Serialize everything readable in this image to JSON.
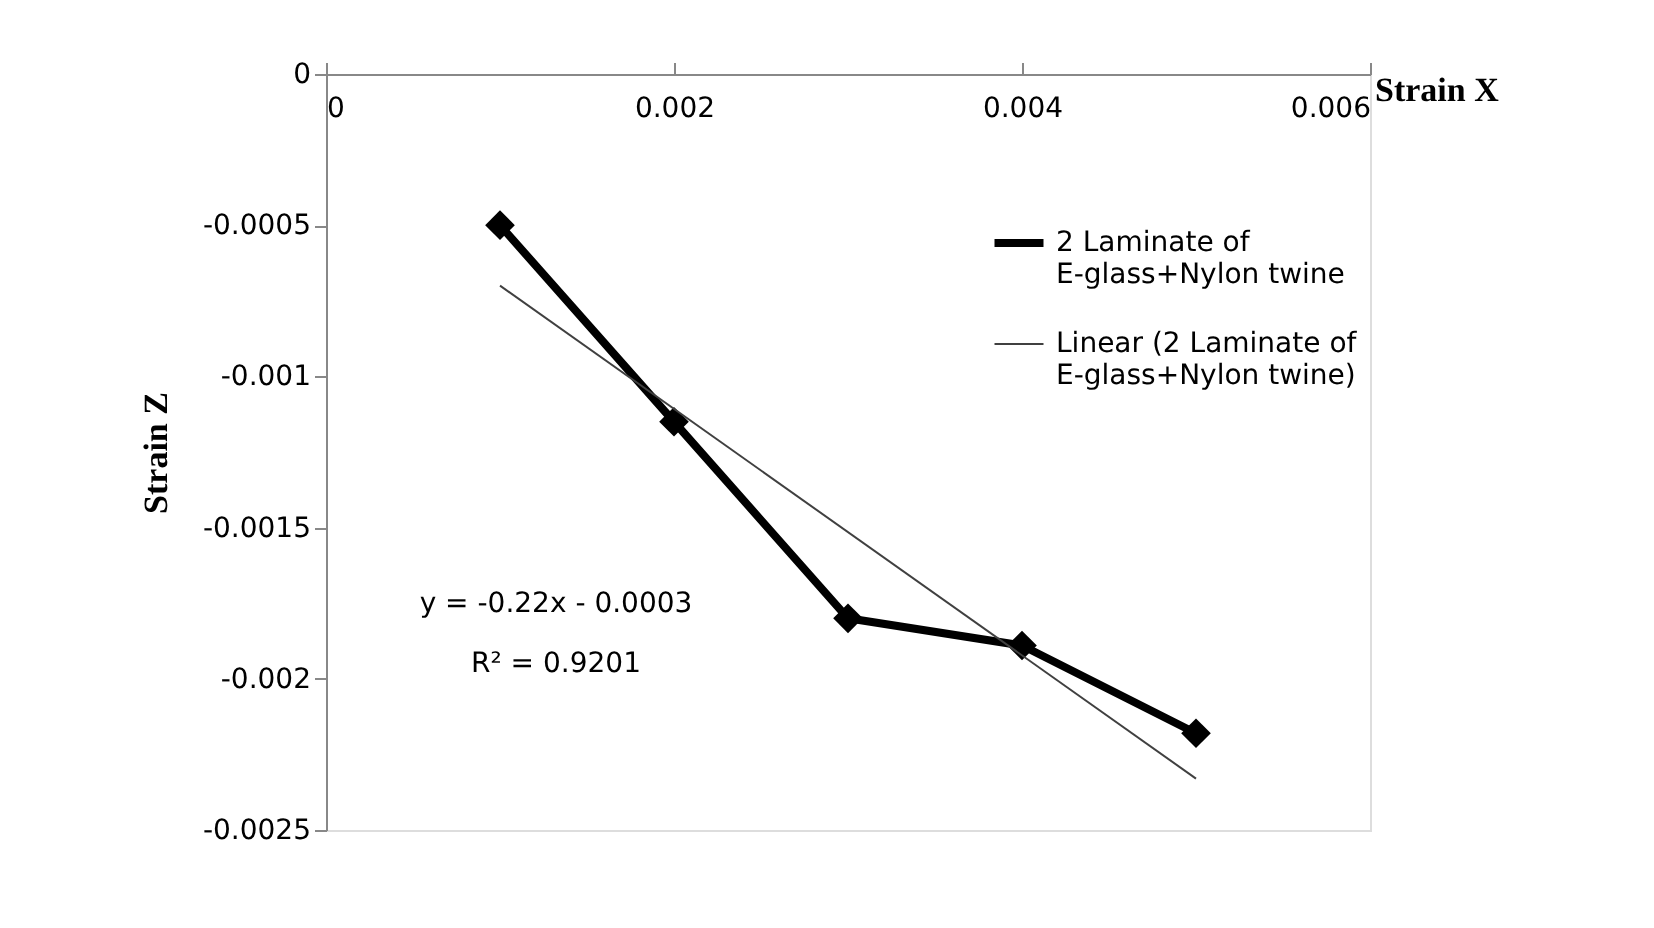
{
  "chart_data": {
    "type": "line",
    "xlabel": "Strain X",
    "ylabel": "Strain Z",
    "x": [
      0.001,
      0.002,
      0.003,
      0.004,
      0.005
    ],
    "series": [
      {
        "name": "2 Laminate of E-glass+Nylon twine",
        "color": "#000000",
        "values": [
          -0.0005,
          -0.00115,
          -0.0018,
          -0.00189,
          -0.00218
        ],
        "marker": "diamond"
      },
      {
        "name": "Linear (2 Laminate of E-glass+Nylon twine)",
        "type": "line",
        "color": "#404040",
        "x": [
          0.001,
          0.005
        ],
        "values": [
          -0.0007,
          -0.00233
        ],
        "marker": "none"
      }
    ],
    "xlim": [
      0,
      0.006
    ],
    "xticks": [
      0,
      0.002,
      0.004,
      0.006
    ],
    "ylim": [
      -0.0025,
      0
    ],
    "yticks": [
      0,
      -0.0005,
      -0.001,
      -0.0015,
      -0.002,
      -0.0025
    ],
    "annotations": [
      "y = -0.22x - 0.0003",
      "R² = 0.9201"
    ],
    "grid": false,
    "legend": "right"
  }
}
